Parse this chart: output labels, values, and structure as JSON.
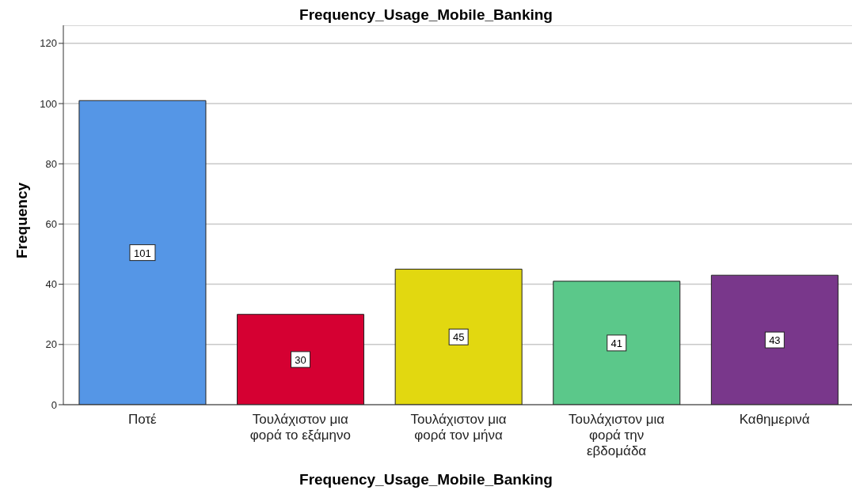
{
  "chart_data": {
    "type": "bar",
    "title": "Frequency_Usage_Mobile_Banking",
    "xlabel": "Frequency_Usage_Mobile_Banking",
    "ylabel": "Frequency",
    "categories": [
      "Ποτέ",
      "Τουλάχιστον μια φορά το εξάμηνο",
      "Τουλάχιστον μια φορά τον μήνα",
      "Τουλάχιστον μια φορά την εβδομάδα",
      "Καθημερινά"
    ],
    "values": [
      101,
      30,
      45,
      41,
      43
    ],
    "colors": [
      "#5596e6",
      "#d50032",
      "#e2d810",
      "#5bc88a",
      "#79378b"
    ],
    "ylim": [
      0,
      126
    ],
    "yticks": [
      0,
      20,
      40,
      60,
      80,
      100,
      120
    ],
    "grid": "y",
    "data_labels": true
  }
}
